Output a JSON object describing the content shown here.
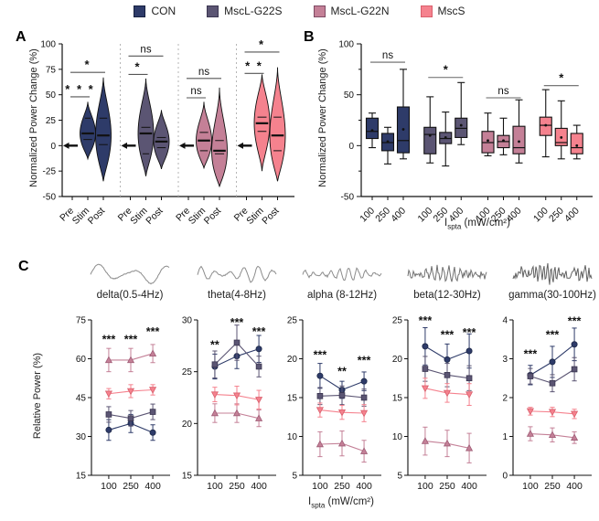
{
  "panels": {
    "a": "A",
    "b": "B",
    "c": "C"
  },
  "legend": {
    "items": [
      {
        "label": "CON",
        "color": "#2e3b69",
        "border": "#15203f"
      },
      {
        "label": "MscL-G22S",
        "color": "#5b5573",
        "border": "#3a3550"
      },
      {
        "label": "MscL-G22N",
        "color": "#c48097",
        "border": "#7e4a63"
      },
      {
        "label": "MscS",
        "color": "#f5828e",
        "border": "#d95f6c"
      }
    ]
  },
  "axis_label": {
    "prefix": "I",
    "sub": "spta",
    "rest": " (mW/cm²)"
  },
  "chart_data": [
    {
      "id": "A",
      "type": "violin",
      "ylabel": "Normalized Power Change (%)",
      "ylim": [
        -50,
        100
      ],
      "yticks": [
        -50,
        -25,
        0,
        25,
        50,
        75,
        100
      ],
      "categories": [
        "Pre",
        "Stim",
        "Post"
      ],
      "groups": [
        {
          "name": "CON",
          "color": "#2e3b69",
          "violins": [
            {
              "flat": 0
            },
            {
              "lo": -13,
              "q1": 6,
              "med": 12,
              "q3": 27,
              "hi": 43
            },
            {
              "lo": -35,
              "q1": 1,
              "med": 10,
              "q3": 27,
              "hi": 67
            }
          ]
        },
        {
          "name": "MscL-G22S",
          "color": "#5b5573",
          "violins": [
            {
              "flat": 0
            },
            {
              "lo": -30,
              "q1": -8,
              "med": 12,
              "q3": 18,
              "hi": 66
            },
            {
              "lo": -23,
              "q1": -2,
              "med": 4,
              "q3": 8,
              "hi": 35
            }
          ]
        },
        {
          "name": "MscL-G22N",
          "color": "#c48097",
          "violins": [
            {
              "flat": 0
            },
            {
              "lo": -22,
              "q1": -5,
              "med": 5,
              "q3": 13,
              "hi": 43
            },
            {
              "lo": -40,
              "q1": -8,
              "med": -5,
              "q3": 5,
              "hi": 57
            }
          ]
        },
        {
          "name": "MscS",
          "color": "#f5828e",
          "violins": [
            {
              "flat": 0
            },
            {
              "lo": -25,
              "q1": 14,
              "med": 22,
              "q3": 28,
              "hi": 70
            },
            {
              "lo": -35,
              "q1": -5,
              "med": 10,
              "q3": 28,
              "hi": 77
            }
          ]
        }
      ],
      "annotations": [
        {
          "group": 0,
          "from": 0,
          "to": 1,
          "y": 48,
          "text": "* * *"
        },
        {
          "group": 0,
          "from": 0,
          "to": 2,
          "y": 72,
          "text": "*"
        },
        {
          "group": 1,
          "from": 0,
          "to": 1,
          "y": 70,
          "text": "*"
        },
        {
          "group": 1,
          "from": 0,
          "to": 2,
          "y": 88,
          "text": "ns"
        },
        {
          "group": 2,
          "from": 0,
          "to": 1,
          "y": 47,
          "text": "ns"
        },
        {
          "group": 2,
          "from": 0,
          "to": 2,
          "y": 66,
          "text": "ns"
        },
        {
          "group": 3,
          "from": 0,
          "to": 1,
          "y": 71,
          "text": "* *"
        },
        {
          "group": 3,
          "from": 0,
          "to": 2,
          "y": 92,
          "text": "*"
        }
      ]
    },
    {
      "id": "B",
      "type": "box",
      "ylabel": "Normalized Power Change (%)",
      "ylim": [
        -50,
        100
      ],
      "yticks": [
        -50,
        0,
        50,
        100
      ],
      "minor_ticks": [
        -25,
        25,
        75
      ],
      "categories": [
        "100",
        "250",
        "400"
      ],
      "groups": [
        {
          "name": "CON",
          "color": "#2e3b69",
          "boxes": [
            {
              "whislo": -2,
              "q1": 7,
              "med": 14,
              "q3": 27,
              "whishi": 32,
              "mean": 15
            },
            {
              "whislo": -18,
              "q1": -5,
              "med": 3,
              "q3": 12,
              "whishi": 18,
              "mean": 4
            },
            {
              "whislo": -13,
              "q1": -7,
              "med": 5,
              "q3": 38,
              "whishi": 75,
              "mean": 16
            }
          ]
        },
        {
          "name": "MscL-G22S",
          "color": "#5b5573",
          "boxes": [
            {
              "whislo": -17,
              "q1": -8,
              "med": 11,
              "q3": 18,
              "whishi": 48,
              "mean": 10
            },
            {
              "whislo": -20,
              "q1": 2,
              "med": 7,
              "q3": 13,
              "whishi": 33,
              "mean": 8
            },
            {
              "whislo": 1,
              "q1": 8,
              "med": 17,
              "q3": 27,
              "whishi": 62,
              "mean": 20
            }
          ]
        },
        {
          "name": "MscL-G22N",
          "color": "#c48097",
          "boxes": [
            {
              "whislo": -10,
              "q1": -7,
              "med": 3,
              "q3": 14,
              "whishi": 32,
              "mean": 5
            },
            {
              "whislo": -9,
              "q1": -2,
              "med": 4,
              "q3": 10,
              "whishi": 27,
              "mean": 5
            },
            {
              "whislo": -17,
              "q1": -8,
              "med": -2,
              "q3": 19,
              "whishi": 45,
              "mean": 4
            }
          ]
        },
        {
          "name": "MscS",
          "color": "#f5828e",
          "boxes": [
            {
              "whislo": -11,
              "q1": 10,
              "med": 20,
              "q3": 28,
              "whishi": 55,
              "mean": 20
            },
            {
              "whislo": -13,
              "q1": 0,
              "med": 3,
              "q3": 17,
              "whishi": 44,
              "mean": 8
            },
            {
              "whislo": -13,
              "q1": -8,
              "med": -2,
              "q3": 12,
              "whishi": 20,
              "mean": 0
            }
          ]
        }
      ],
      "annotations": [
        {
          "group": 0,
          "from": 0,
          "to": 2,
          "y": 82,
          "text": "ns"
        },
        {
          "group": 1,
          "from": 0,
          "to": 2,
          "y": 67,
          "text": "*"
        },
        {
          "group": 2,
          "from": 0,
          "to": 2,
          "y": 47,
          "text": "ns"
        },
        {
          "group": 3,
          "from": 0,
          "to": 2,
          "y": 59,
          "text": "*"
        }
      ]
    },
    {
      "id": "C",
      "type": "line",
      "ylabel": "Relative Power (%)",
      "categories": [
        "100",
        "250",
        "400"
      ],
      "series_style": [
        {
          "name": "CON",
          "marker": "circle",
          "color": "#2e3b69",
          "stroke": "#1c2746"
        },
        {
          "name": "MscL-G22S",
          "marker": "square",
          "color": "#5b5573",
          "stroke": "#3a3550"
        },
        {
          "name": "MscL-G22N",
          "marker": "triangle-up",
          "color": "#c48097",
          "stroke": "#9f5c76"
        },
        {
          "name": "MscS",
          "marker": "triangle-down",
          "color": "#f5828e",
          "stroke": "#d95f6c"
        }
      ],
      "subplots": [
        {
          "title": "delta(0.5-4Hz)",
          "ylim": [
            15,
            75
          ],
          "yticks": [
            15,
            30,
            45,
            60,
            75
          ],
          "wave": {
            "cycles": 2.3,
            "amp": 11,
            "noise": 0.04,
            "seed": 1,
            "color": "#8c8c8c"
          },
          "series": [
            {
              "name": "CON",
              "values": [
                32.5,
                35.0,
                31.5
              ],
              "err": [
                4.0,
                3.5,
                3.0
              ]
            },
            {
              "name": "MscL-G22S",
              "values": [
                38.5,
                37.0,
                39.5
              ],
              "err": [
                3.0,
                3.0,
                3.0
              ]
            },
            {
              "name": "MscL-G22N",
              "values": [
                59.5,
                59.5,
                62.0
              ],
              "err": [
                4.5,
                4.5,
                3.5
              ]
            },
            {
              "name": "MscS",
              "values": [
                46.5,
                47.5,
                48.0
              ],
              "err": [
                2.0,
                2.5,
                2.0
              ]
            }
          ],
          "sig": [
            {
              "x": 0,
              "y": 66,
              "text": "***"
            },
            {
              "x": 1,
              "y": 66,
              "text": "***"
            },
            {
              "x": 2,
              "y": 69,
              "text": "***"
            }
          ]
        },
        {
          "title": "theta(4-8Hz)",
          "ylim": [
            15,
            30
          ],
          "yticks": [
            15,
            20,
            25,
            30
          ],
          "wave": {
            "cycles": 5.5,
            "amp": 9,
            "noise": 0.08,
            "seed": 2,
            "color": "#8c8c8c"
          },
          "series": [
            {
              "name": "CON",
              "values": [
                25.5,
                26.5,
                27.2
              ],
              "err": [
                1.2,
                1.2,
                1.3
              ]
            },
            {
              "name": "MscL-G22S",
              "values": [
                25.7,
                27.8,
                25.5
              ],
              "err": [
                1.3,
                1.7,
                1.0
              ]
            },
            {
              "name": "MscL-G22N",
              "values": [
                21.0,
                21.0,
                20.5
              ],
              "err": [
                0.9,
                0.9,
                0.8
              ]
            },
            {
              "name": "MscS",
              "values": [
                22.8,
                22.7,
                22.3
              ],
              "err": [
                0.7,
                0.9,
                0.9
              ]
            }
          ],
          "sig": [
            {
              "x": 0,
              "y": 27.2,
              "text": "**"
            },
            {
              "x": 1,
              "y": 29.4,
              "text": "***"
            },
            {
              "x": 2,
              "y": 28.5,
              "text": "***"
            }
          ]
        },
        {
          "title": "alpha (8-12Hz)",
          "ylim": [
            5,
            25
          ],
          "yticks": [
            5,
            10,
            15,
            20,
            25
          ],
          "wave": {
            "cycles": 9,
            "amp": 7,
            "noise": 0.16,
            "seed": 3,
            "color": "#8c8c8c"
          },
          "series": [
            {
              "name": "CON",
              "values": [
                17.8,
                16.0,
                17.1
              ],
              "err": [
                1.6,
                1.1,
                1.2
              ]
            },
            {
              "name": "MscL-G22S",
              "values": [
                15.2,
                15.3,
                15.0
              ],
              "err": [
                1.1,
                1.2,
                1.1
              ]
            },
            {
              "name": "MscL-G22N",
              "values": [
                9.0,
                9.1,
                8.1
              ],
              "err": [
                1.6,
                1.6,
                1.4
              ]
            },
            {
              "name": "MscS",
              "values": [
                13.4,
                13.1,
                13.0
              ],
              "err": [
                0.9,
                0.9,
                1.1
              ]
            }
          ],
          "sig": [
            {
              "x": 0,
              "y": 20.0,
              "text": "***"
            },
            {
              "x": 1,
              "y": 17.9,
              "text": "**"
            },
            {
              "x": 2,
              "y": 19.3,
              "text": "***"
            }
          ]
        },
        {
          "title": "beta(12-30Hz)",
          "ylim": [
            5,
            25
          ],
          "yticks": [
            5,
            10,
            15,
            20,
            25
          ],
          "wave": {
            "cycles": 14,
            "amp": 8,
            "noise": 0.45,
            "seed": 4,
            "color": "#707070"
          },
          "series": [
            {
              "name": "CON",
              "values": [
                21.6,
                19.9,
                21.0
              ],
              "err": [
                2.4,
                2.0,
                2.2
              ]
            },
            {
              "name": "MscL-G22S",
              "values": [
                18.7,
                17.9,
                17.5
              ],
              "err": [
                1.6,
                1.5,
                1.6
              ]
            },
            {
              "name": "MscL-G22N",
              "values": [
                9.4,
                9.1,
                8.5
              ],
              "err": [
                1.8,
                1.7,
                1.9
              ]
            },
            {
              "name": "MscS",
              "values": [
                16.2,
                15.6,
                15.4
              ],
              "err": [
                1.3,
                1.2,
                1.4
              ]
            }
          ],
          "sig": [
            {
              "x": 0,
              "y": 24.4,
              "text": "***"
            },
            {
              "x": 1,
              "y": 22.6,
              "text": "***"
            },
            {
              "x": 2,
              "y": 22.9,
              "text": "***"
            }
          ]
        },
        {
          "title": "gamma(30-100Hz)",
          "ylim": [
            0,
            4
          ],
          "yticks": [
            0,
            1,
            2,
            3,
            4
          ],
          "wave": {
            "cycles": 21,
            "amp": 8,
            "noise": 0.7,
            "seed": 5,
            "color": "#616161"
          },
          "series": [
            {
              "name": "CON",
              "values": [
                2.58,
                2.92,
                3.37
              ],
              "err": [
                0.25,
                0.4,
                0.42
              ]
            },
            {
              "name": "MscL-G22S",
              "values": [
                2.55,
                2.37,
                2.73
              ],
              "err": [
                0.2,
                0.22,
                0.3
              ]
            },
            {
              "name": "MscL-G22N",
              "values": [
                1.07,
                1.04,
                0.97
              ],
              "err": [
                0.18,
                0.18,
                0.15
              ]
            },
            {
              "name": "MscS",
              "values": [
                1.65,
                1.63,
                1.58
              ],
              "err": [
                0.1,
                0.12,
                0.12
              ]
            }
          ],
          "sig": [
            {
              "x": 0,
              "y": 3.02,
              "text": "***"
            },
            {
              "x": 1,
              "y": 3.52,
              "text": "***"
            },
            {
              "x": 2,
              "y": 3.87,
              "text": "***"
            }
          ]
        }
      ]
    }
  ]
}
